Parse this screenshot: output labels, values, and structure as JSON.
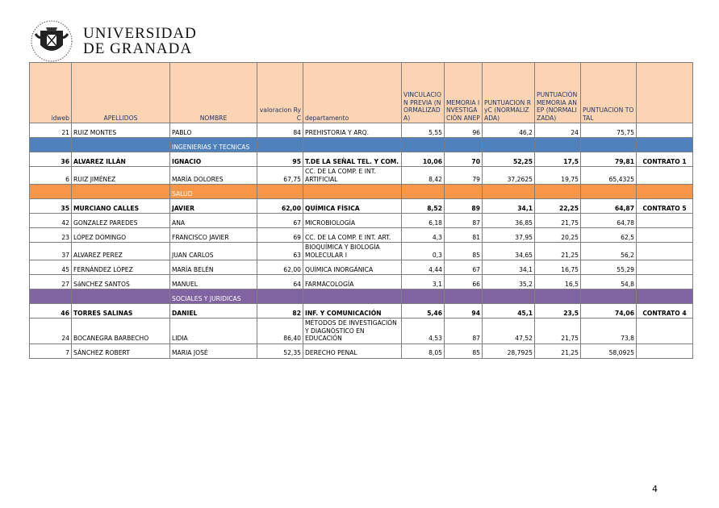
{
  "header": {
    "title_line1": "UNIVERSIDAD",
    "title_line2": "DE GRANADA"
  },
  "table": {
    "columns": [
      "idweb",
      "APELLIDOS",
      "NOMBRE",
      "valoracion RyC",
      "departamento",
      "VINCULACION PREVIA (NORMALIZADA)",
      "MEMORIA INVESTIGACIÓN ANEP",
      "PUNTUACION RyC (NORMALIZADA)",
      "PUNTUACIÓN MEMORIA ANEP (NORMALIZADA)",
      "PUNTUACION TOTAL"
    ],
    "header_color": "#fbd4b4",
    "rows": [
      {
        "cells": [
          21,
          "RUIZ MONTES",
          "PABLO",
          84,
          "PREHISTORIA Y ARQ.",
          "5,55",
          96,
          "46,2",
          24,
          "75,75"
        ]
      },
      {
        "section": "INGENIERIAS Y TECNICAS",
        "color": "#4f81bd"
      },
      {
        "bold": true,
        "cells": [
          36,
          "ALVAREZ ILLÁN",
          "IGNACIO",
          95,
          "T.DE LA SEÑAL TEL. Y COM.",
          "10,06",
          70,
          "52,25",
          "17,5",
          "79,81",
          "CONTRATO 1"
        ]
      },
      {
        "cells": [
          6,
          "RUIZ JIMÉNEZ",
          "MARÍA DOLORES",
          "67,75",
          "CC. DE LA COMP. E INT. ARTIFICIAL",
          "8,42",
          79,
          "37,2625",
          "19,75",
          "65,4325"
        ]
      },
      {
        "section": "SALUD",
        "color": "#f79646"
      },
      {
        "bold": true,
        "cells": [
          35,
          "MURCIANO CALLES",
          "JAVIER",
          "62,00",
          "QUÍMICA FÍSICA",
          "8,52",
          89,
          "34,1",
          "22,25",
          "64,87",
          "CONTRATO 5"
        ]
      },
      {
        "cells": [
          42,
          "GONZALEZ PAREDES",
          "ANA",
          67,
          "MICROBIOLOGÍA",
          "6,18",
          87,
          "36,85",
          "21,75",
          "64,78"
        ]
      },
      {
        "cells": [
          23,
          "LÓPEZ DOMINGO",
          "FRANCISCO JAVIER",
          69,
          "CC. DE LA COMP. E INT. ART.",
          "4,3",
          81,
          "37,95",
          "20,25",
          "62,5"
        ]
      },
      {
        "cells": [
          37,
          "ALVAREZ PEREZ",
          "JUAN CARLOS",
          63,
          "BIOQUÍMICA Y BIOLOGÍA MOLECULAR I",
          "0,3",
          85,
          "34,65",
          "21,25",
          "56,2"
        ]
      },
      {
        "cells": [
          45,
          "FERNÁNDEZ LÓPEZ",
          "MARÍA BELÉN",
          "62,00",
          "QUÍMICA INORGÁNICA",
          "4,44",
          67,
          "34,1",
          "16,75",
          "55,29"
        ]
      },
      {
        "cells": [
          27,
          "SáNCHEZ SANTOS",
          "MANUEL",
          64,
          "FARMACOLOGÍA",
          "3,1",
          66,
          "35,2",
          "16,5",
          "54,8"
        ]
      },
      {
        "section": "SOCIALES Y JURIDICAS",
        "color": "#8064a2"
      },
      {
        "bold": true,
        "cells": [
          46,
          "TORRES SALINAS",
          "DANIEL",
          82,
          "INF. Y COMUNICACIÓN",
          "5,46",
          94,
          "45,1",
          "23,5",
          "74,06",
          "CONTRATO 4"
        ]
      },
      {
        "cells": [
          24,
          "BOCANEGRA BARBECHO",
          "LIDIA",
          "86,40",
          "MÉTODOS DE INVESTIGACIÓN Y DIAGNÓSTICO EN EDUCACIÓN",
          "4,53",
          87,
          "47,52",
          "21,75",
          "73,8"
        ]
      },
      {
        "cells": [
          7,
          "SÁNCHEZ ROBERT",
          "MARIA JOSÉ",
          "52,35",
          "DERECHO PENAL",
          "8,05",
          85,
          "28,7925",
          "21,25",
          "58,0925"
        ]
      }
    ]
  },
  "footer": {
    "page_number": 4
  }
}
